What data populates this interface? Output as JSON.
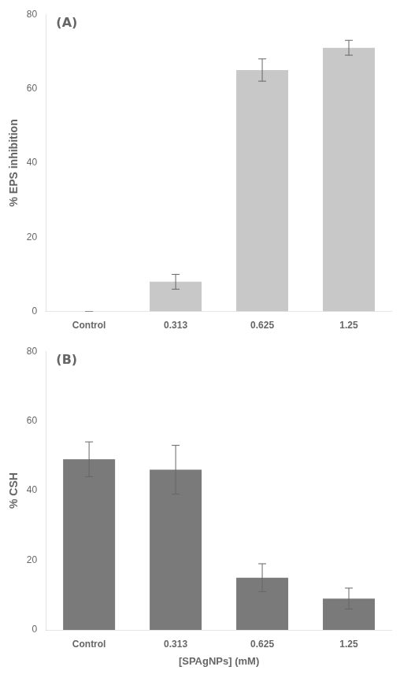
{
  "chart_data": [
    {
      "type": "bar",
      "annotation": "(A)",
      "categories": [
        "Control",
        "0.313",
        "0.625",
        "1.25"
      ],
      "values": [
        0,
        8.0,
        65.0,
        71.0
      ],
      "errors": [
        0,
        2.0,
        3.0,
        2.0
      ],
      "ylabel": "% EPS inhibition",
      "ylim": [
        0,
        80
      ],
      "yticks": [
        0,
        20,
        40,
        60,
        80
      ],
      "color": "#c8c8c8",
      "grid": false
    },
    {
      "type": "bar",
      "annotation": "(B)",
      "categories": [
        "Control",
        "0.313",
        "0.625",
        "1.25"
      ],
      "values": [
        49.0,
        46.0,
        15.0,
        9.0
      ],
      "errors": [
        5.0,
        7.0,
        4.0,
        3.0
      ],
      "ylabel": "% CSH",
      "xlabel": "[SPAgNPs] (mM)",
      "ylim": [
        0,
        80
      ],
      "yticks": [
        0,
        20,
        40,
        60,
        80
      ],
      "color": "#7a7a7a",
      "grid": false
    }
  ]
}
